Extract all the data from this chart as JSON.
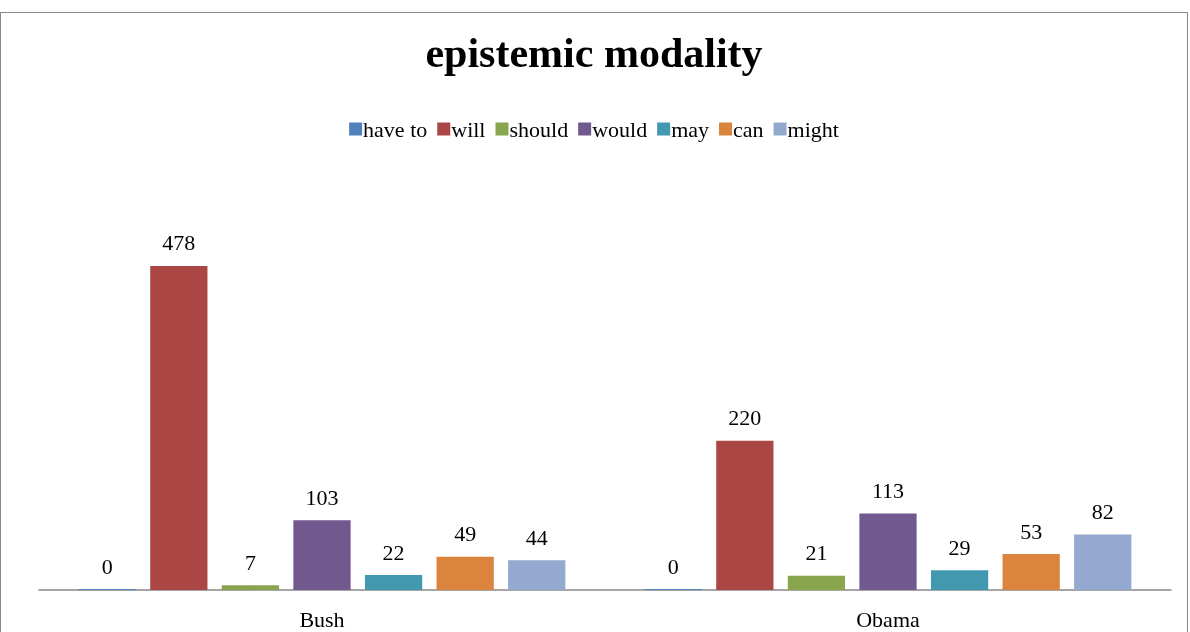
{
  "chart_data": {
    "type": "bar",
    "title": "epistemic modality",
    "categories": [
      "Bush",
      "Obama"
    ],
    "series": [
      {
        "name": "have to",
        "color": "#4f81bd",
        "values": [
          0,
          0
        ]
      },
      {
        "name": "will",
        "color": "#aa4643",
        "values": [
          478,
          220
        ]
      },
      {
        "name": "should",
        "color": "#89a54e",
        "values": [
          7,
          21
        ]
      },
      {
        "name": "would",
        "color": "#71588f",
        "values": [
          103,
          113
        ]
      },
      {
        "name": "may",
        "color": "#4198af",
        "values": [
          22,
          29
        ]
      },
      {
        "name": "can",
        "color": "#db843d",
        "values": [
          49,
          53
        ]
      },
      {
        "name": "might",
        "color": "#93a9cf",
        "values": [
          44,
          82
        ]
      }
    ],
    "data_labels": true,
    "grid": false,
    "legend": "top",
    "tick_labels": "x"
  }
}
